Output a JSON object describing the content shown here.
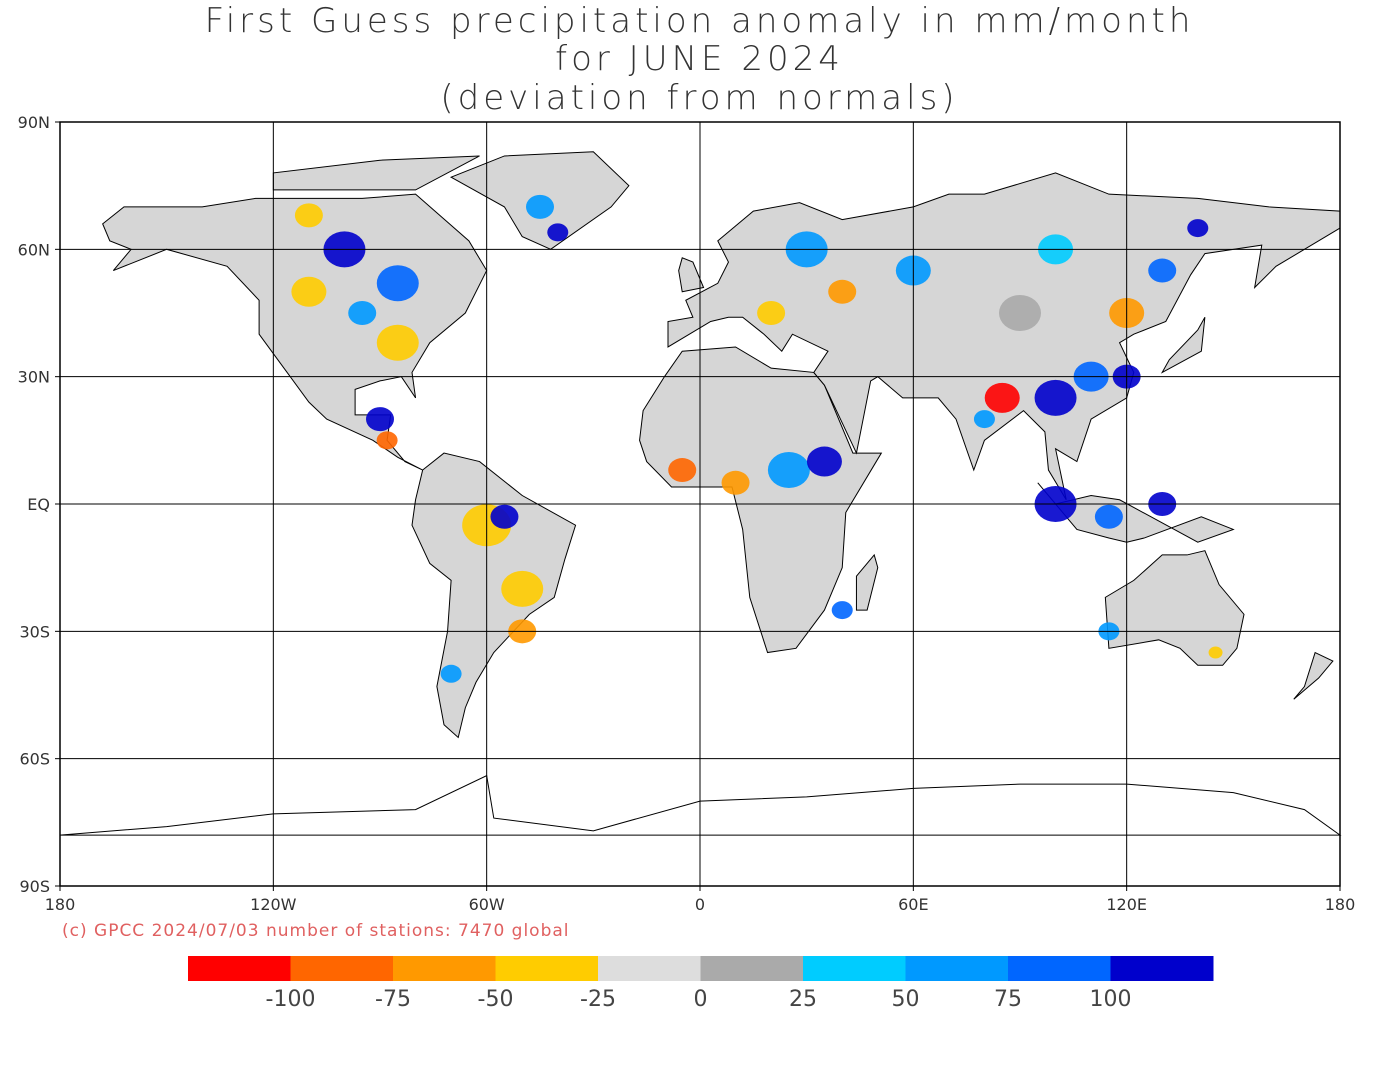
{
  "title": {
    "line1": "First Guess precipitation anomaly in mm/month",
    "line2": "for JUNE 2024",
    "line3": "(deviation from normals)"
  },
  "map": {
    "lat_labels": [
      "90N",
      "60N",
      "30N",
      "EQ",
      "30S",
      "60S",
      "90S"
    ],
    "lon_labels": [
      "180",
      "120W",
      "60W",
      "0",
      "60E",
      "120E",
      "180"
    ],
    "projection": "equirectangular",
    "grid": true
  },
  "credit": "(c) GPCC 2024/07/03 number of stations: 7470 global",
  "legend": {
    "colors": [
      "#ff0000",
      "#ff6600",
      "#ff9900",
      "#ffcc00",
      "#dddddd",
      "#aaaaaa",
      "#00ccff",
      "#0099ff",
      "#0066ff",
      "#0000cc"
    ],
    "labels": [
      "-100",
      "-75",
      "-50",
      "-25",
      "0",
      "25",
      "50",
      "75",
      "100"
    ]
  }
}
